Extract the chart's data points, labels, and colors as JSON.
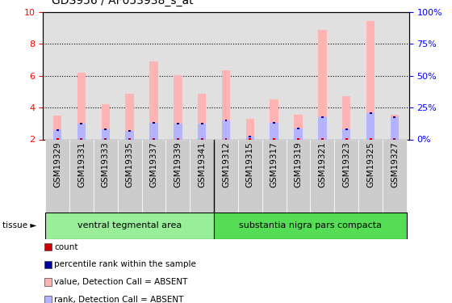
{
  "title": "GDS956 / AF053938_s_at",
  "categories": [
    "GSM19329",
    "GSM19331",
    "GSM19333",
    "GSM19335",
    "GSM19337",
    "GSM19339",
    "GSM19341",
    "GSM19312",
    "GSM19315",
    "GSM19317",
    "GSM19319",
    "GSM19321",
    "GSM19323",
    "GSM19325",
    "GSM19327"
  ],
  "value_absent": [
    3.5,
    6.2,
    4.2,
    4.85,
    6.9,
    6.05,
    4.85,
    6.35,
    3.3,
    4.5,
    3.55,
    8.9,
    4.7,
    9.45,
    3.55
  ],
  "rank_absent": [
    2.6,
    3.0,
    2.65,
    2.55,
    3.05,
    3.0,
    3.0,
    3.2,
    2.2,
    3.05,
    2.7,
    3.4,
    2.65,
    3.65,
    3.4
  ],
  "color_value_absent": "#ffb3b3",
  "color_rank_absent": "#b3b3ff",
  "color_count": "#cc0000",
  "color_rank": "#000099",
  "ylim_left": [
    2,
    10
  ],
  "ylim_right": [
    0,
    100
  ],
  "yticks_left": [
    2,
    4,
    6,
    8,
    10
  ],
  "yticks_right": [
    0,
    25,
    50,
    75,
    100
  ],
  "group1_label": "ventral tegmental area",
  "group2_label": "substantia nigra pars compacta",
  "group1_count": 7,
  "group2_count": 8,
  "tissue_label": "tissue",
  "legend_items": [
    {
      "label": "count",
      "color": "#cc0000"
    },
    {
      "label": "percentile rank within the sample",
      "color": "#000099"
    },
    {
      "label": "value, Detection Call = ABSENT",
      "color": "#ffb3b3"
    },
    {
      "label": "rank, Detection Call = ABSENT",
      "color": "#b3b3ff"
    }
  ],
  "bar_width": 0.35,
  "background_plot": "#e0e0e0",
  "background_xlabel": "#d0d0d0",
  "background_tissue1": "#99ee99",
  "background_tissue2": "#55dd55",
  "title_fontsize": 10,
  "tick_fontsize": 7.5
}
